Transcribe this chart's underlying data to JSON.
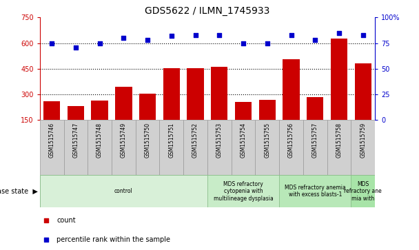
{
  "title": "GDS5622 / ILMN_1745933",
  "samples": [
    "GSM1515746",
    "GSM1515747",
    "GSM1515748",
    "GSM1515749",
    "GSM1515750",
    "GSM1515751",
    "GSM1515752",
    "GSM1515753",
    "GSM1515754",
    "GSM1515755",
    "GSM1515756",
    "GSM1515757",
    "GSM1515758",
    "GSM1515759"
  ],
  "counts": [
    258,
    230,
    265,
    345,
    305,
    455,
    455,
    460,
    255,
    268,
    505,
    285,
    625,
    480
  ],
  "percentiles": [
    75,
    71,
    75,
    80,
    78,
    82,
    83,
    83,
    75,
    75,
    83,
    78,
    85,
    83
  ],
  "ylim_left": [
    150,
    750
  ],
  "ylim_right": [
    0,
    100
  ],
  "yticks_left": [
    150,
    300,
    450,
    600,
    750
  ],
  "yticks_right": [
    0,
    25,
    50,
    75,
    100
  ],
  "bar_color": "#cc0000",
  "dot_color": "#0000cc",
  "disease_groups": [
    {
      "label": "control",
      "start": 0,
      "end": 7,
      "color": "#d8f0d8"
    },
    {
      "label": "MDS refractory\ncytopenia with\nmultilineage dysplasia",
      "start": 7,
      "end": 10,
      "color": "#c8ecc8"
    },
    {
      "label": "MDS refractory anemia\nwith excess blasts-1",
      "start": 10,
      "end": 13,
      "color": "#b8e8b8"
    },
    {
      "label": "MDS\nrefractory ane\nmia with",
      "start": 13,
      "end": 14,
      "color": "#a8e4a8"
    }
  ]
}
